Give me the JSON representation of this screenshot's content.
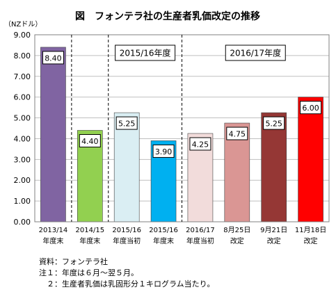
{
  "chart_data": {
    "type": "bar",
    "title": "図　フォンテラ社の生産者乳価改定の推移",
    "ylabel": "（NZドル）",
    "ylim": [
      0,
      9
    ],
    "yticks": [
      "0.00",
      "1.00",
      "2.00",
      "3.00",
      "4.00",
      "5.00",
      "6.00",
      "7.00",
      "8.00",
      "9.00"
    ],
    "categories": [
      [
        "2013/14",
        "年度末"
      ],
      [
        "2014/15",
        "年度末"
      ],
      [
        "2015/16",
        "年度当初"
      ],
      [
        "2015/16",
        "年度末"
      ],
      [
        "2016/17",
        "年度当初"
      ],
      [
        "8月25日",
        "改定"
      ],
      [
        "9月21日",
        "改定"
      ],
      [
        "11月18日",
        "改定"
      ]
    ],
    "values": [
      8.4,
      4.4,
      5.25,
      3.9,
      4.25,
      4.75,
      5.25,
      6.0
    ],
    "value_labels": [
      "8.40",
      "4.40",
      "5.25",
      "3.90",
      "4.25",
      "4.75",
      "5.25",
      "6.00"
    ],
    "colors": [
      "#8064a2",
      "#92d050",
      "#daeef3",
      "#00b0f0",
      "#f2dcdb",
      "#da9694",
      "#953735",
      "#ff0000"
    ],
    "group_labels": [
      "2015/16年度",
      "2016/17年度"
    ],
    "grid": true,
    "legend": "none"
  },
  "notes": {
    "source": "資料：フォンテラ社",
    "note1": "注１：年度は６月～翌５月。",
    "note2": "　２：生産者乳価は乳固形分１キログラム当たり。"
  }
}
